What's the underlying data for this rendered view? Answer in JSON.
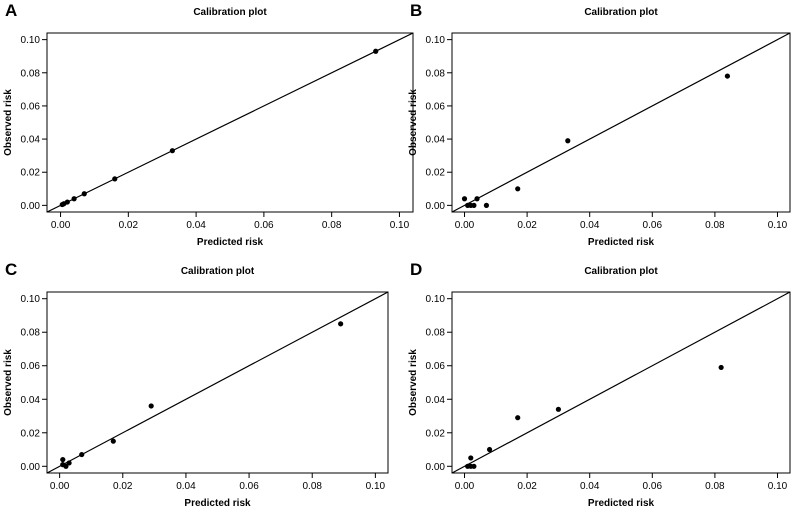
{
  "chart_data": [
    {
      "panel_label": "A",
      "type": "scatter",
      "title": "Calibration plot",
      "xlabel": "Predicted risk",
      "ylabel": "Observed risk",
      "xlim": [
        0,
        0.1
      ],
      "ylim": [
        0,
        0.1
      ],
      "xticks": [
        "0.00",
        "0.02",
        "0.04",
        "0.06",
        "0.08",
        "0.10"
      ],
      "yticks": [
        "0.00",
        "0.02",
        "0.04",
        "0.06",
        "0.08",
        "0.10"
      ],
      "reference_line": "y = x",
      "grid": false,
      "points": [
        [
          0.0005,
          0.0005
        ],
        [
          0.001,
          0.001
        ],
        [
          0.002,
          0.002
        ],
        [
          0.004,
          0.004
        ],
        [
          0.007,
          0.007
        ],
        [
          0.016,
          0.016
        ],
        [
          0.033,
          0.033
        ],
        [
          0.093,
          0.093
        ]
      ]
    },
    {
      "panel_label": "B",
      "type": "scatter",
      "title": "Calibration plot",
      "xlabel": "Predicted risk",
      "ylabel": "Observed risk",
      "xlim": [
        0,
        0.1
      ],
      "ylim": [
        0,
        0.1
      ],
      "xticks": [
        "0.00",
        "0.02",
        "0.04",
        "0.06",
        "0.08",
        "0.10"
      ],
      "yticks": [
        "0.00",
        "0.02",
        "0.04",
        "0.06",
        "0.08",
        "0.10"
      ],
      "reference_line": "y = x",
      "grid": false,
      "points": [
        [
          0.0,
          0.004
        ],
        [
          0.001,
          0.0
        ],
        [
          0.002,
          0.0
        ],
        [
          0.003,
          0.0
        ],
        [
          0.004,
          0.004
        ],
        [
          0.007,
          0.0
        ],
        [
          0.017,
          0.01
        ],
        [
          0.033,
          0.039
        ],
        [
          0.084,
          0.078
        ]
      ]
    },
    {
      "panel_label": "C",
      "type": "scatter",
      "title": "Calibration plot",
      "xlabel": "Predicted risk",
      "ylabel": "Observed risk",
      "xlim": [
        0,
        0.1
      ],
      "ylim": [
        0,
        0.1
      ],
      "xticks": [
        "0.00",
        "0.02",
        "0.04",
        "0.06",
        "0.08",
        "0.10"
      ],
      "yticks": [
        "0.00",
        "0.02",
        "0.04",
        "0.06",
        "0.08",
        "0.10"
      ],
      "reference_line": "y = x",
      "grid": false,
      "points": [
        [
          0.001,
          0.004
        ],
        [
          0.001,
          0.001
        ],
        [
          0.002,
          0.0
        ],
        [
          0.003,
          0.002
        ],
        [
          0.007,
          0.007
        ],
        [
          0.017,
          0.015
        ],
        [
          0.029,
          0.036
        ],
        [
          0.089,
          0.085
        ]
      ]
    },
    {
      "panel_label": "D",
      "type": "scatter",
      "title": "Calibration plot",
      "xlabel": "Predicted risk",
      "ylabel": "Observed risk",
      "xlim": [
        0,
        0.1
      ],
      "ylim": [
        0,
        0.1
      ],
      "xticks": [
        "0.00",
        "0.02",
        "0.04",
        "0.06",
        "0.08",
        "0.10"
      ],
      "yticks": [
        "0.00",
        "0.02",
        "0.04",
        "0.06",
        "0.08",
        "0.10"
      ],
      "reference_line": "y = x",
      "grid": false,
      "points": [
        [
          0.001,
          0.0
        ],
        [
          0.002,
          0.0
        ],
        [
          0.003,
          0.0
        ],
        [
          0.002,
          0.005
        ],
        [
          0.008,
          0.01
        ],
        [
          0.017,
          0.029
        ],
        [
          0.03,
          0.034
        ],
        [
          0.082,
          0.059
        ]
      ]
    }
  ],
  "colors": {
    "points": "#000000",
    "line": "#000000",
    "background": "#ffffff"
  }
}
